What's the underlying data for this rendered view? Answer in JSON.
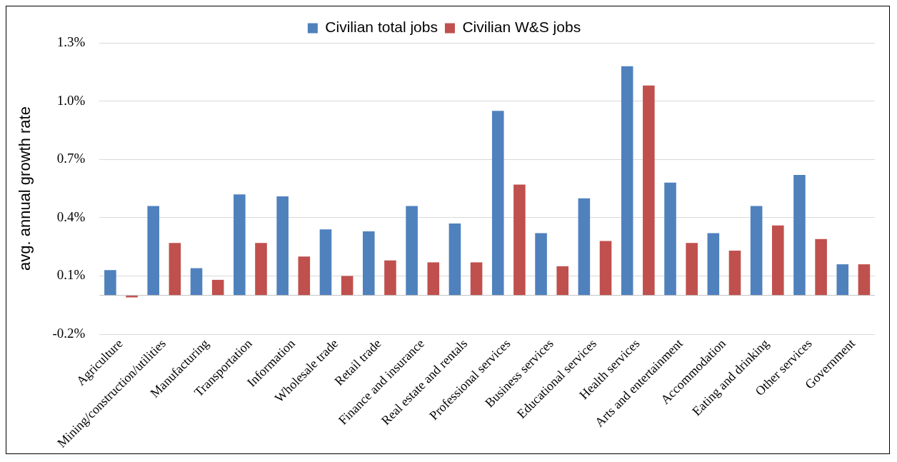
{
  "chart_data": {
    "type": "bar",
    "ylabel": "avg. annual growth rate",
    "categories": [
      "Agriculture",
      "Mining/construction/utilities",
      "Manufacturing",
      "Transportation",
      "Information",
      "Wholesale trade",
      "Retail trade",
      "Finance and insurance",
      "Real estate and rentals",
      "Professional services",
      "Business services",
      "Educational services",
      "Health services",
      "Arts and entertainment",
      "Accommodation",
      "Eating and drinking",
      "Other services",
      "Government"
    ],
    "series": [
      {
        "name": "Civilian total jobs",
        "color": "#4f81bd",
        "values": [
          0.13,
          0.46,
          0.14,
          0.52,
          0.51,
          0.34,
          0.33,
          0.46,
          0.37,
          0.95,
          0.32,
          0.5,
          1.18,
          0.58,
          0.32,
          0.46,
          0.62,
          0.16
        ]
      },
      {
        "name": "Civilian W&S jobs",
        "color": "#c0504d",
        "values": [
          -0.01,
          0.27,
          0.08,
          0.27,
          0.2,
          0.1,
          0.18,
          0.17,
          0.17,
          0.57,
          0.15,
          0.28,
          1.08,
          0.27,
          0.23,
          0.36,
          0.29,
          0.16
        ]
      }
    ],
    "ylim": [
      -0.2,
      1.3
    ],
    "yticks": [
      {
        "value": -0.2,
        "label": "-0.2%"
      },
      {
        "value": 0.1,
        "label": "0.1%"
      },
      {
        "value": 0.4,
        "label": "0.4%"
      },
      {
        "value": 0.7,
        "label": "0.7%"
      },
      {
        "value": 1.0,
        "label": "1.0%"
      },
      {
        "value": 1.3,
        "label": "1.3%"
      }
    ],
    "grid": "y",
    "legend": "top"
  }
}
